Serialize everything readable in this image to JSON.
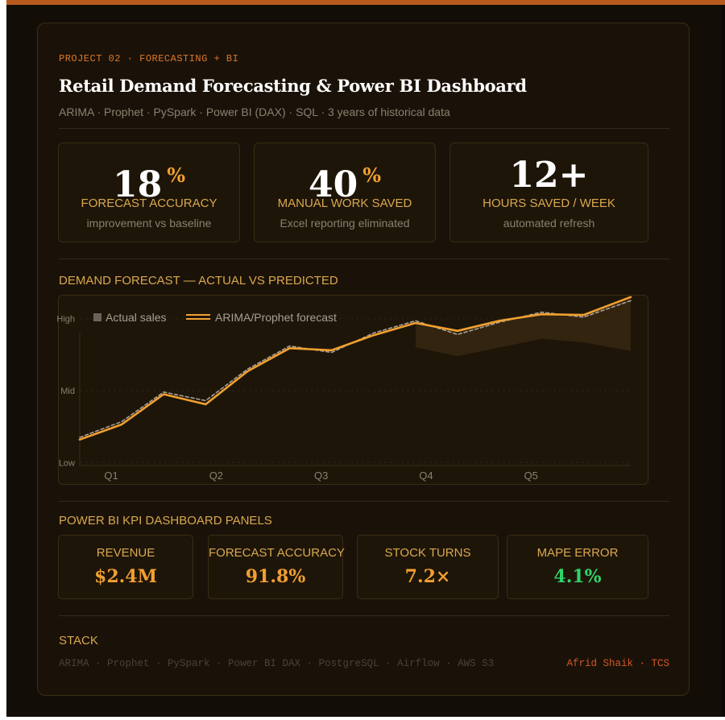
{
  "colors": {
    "accent": "#f0a030",
    "eyebrow": "#e0782a",
    "label": "#d9a84e",
    "good": "#2fd46a",
    "author": "#d2582a"
  },
  "project": {
    "eyebrow": "PROJECT 02 · FORECASTING + BI",
    "title": "Retail Demand Forecasting & Power BI Dashboard",
    "subtitle": "ARIMA · Prophet · PySpark · Power BI (DAX) · SQL · 3 years of historical data"
  },
  "stats": [
    {
      "value": "18",
      "unit": "%",
      "label": "FORECAST ACCURACY",
      "note": "improvement vs baseline"
    },
    {
      "value": "40",
      "unit": "%",
      "label": "MANUAL WORK SAVED",
      "note": "Excel reporting eliminated"
    },
    {
      "value": "12+",
      "unit": "",
      "label": "HOURS SAVED / WEEK",
      "note": "automated refresh"
    }
  ],
  "forecast_section": {
    "heading": "DEMAND FORECAST — ACTUAL VS PREDICTED"
  },
  "chart_data": {
    "type": "line",
    "title": "",
    "xlabel": "",
    "ylabel": "",
    "x_ticks": [
      "Q1",
      "Q2",
      "Q3",
      "Q4",
      "Q5"
    ],
    "y_ticks": [
      "Low",
      "Mid",
      "High"
    ],
    "grid": true,
    "legend_position": "top-left",
    "x_range": [
      0.7,
      5.95
    ],
    "y_range": [
      0.96,
      3.32
    ],
    "series": [
      {
        "name": "Actual sales",
        "style": "dashed",
        "color": "#a89f94",
        "x": [
          0.7,
          1.1,
          1.5,
          1.9,
          2.3,
          2.7,
          3.1,
          3.5,
          3.9,
          4.3,
          4.7,
          5.1,
          5.5,
          5.95
        ],
        "y": [
          1.35,
          1.57,
          1.98,
          1.86,
          2.3,
          2.62,
          2.53,
          2.8,
          2.97,
          2.78,
          2.95,
          3.09,
          3.02,
          3.25
        ]
      },
      {
        "name": "ARIMA/Prophet forecast",
        "style": "solid",
        "color": "#f0a030",
        "x": [
          0.7,
          1.1,
          1.5,
          1.9,
          2.3,
          2.7,
          3.1,
          3.5,
          3.9,
          4.3,
          4.7,
          5.1,
          5.5,
          5.95
        ],
        "y": [
          1.32,
          1.53,
          1.95,
          1.81,
          2.27,
          2.59,
          2.56,
          2.77,
          2.94,
          2.83,
          2.97,
          3.06,
          3.05,
          3.3
        ]
      }
    ],
    "confidence_band": {
      "x": [
        3.9,
        4.3,
        4.7,
        5.1,
        5.5,
        5.95
      ],
      "upper": [
        2.94,
        2.83,
        2.97,
        3.06,
        3.05,
        3.3
      ],
      "lower": [
        2.6,
        2.48,
        2.6,
        2.72,
        2.67,
        2.55
      ]
    }
  },
  "kpi_section": {
    "heading": "POWER BI KPI DASHBOARD PANELS"
  },
  "kpis": [
    {
      "label": "REVENUE",
      "value": "$2.4M",
      "status": "accent"
    },
    {
      "label": "FORECAST ACCURACY",
      "value": "91.8%",
      "status": "accent"
    },
    {
      "label": "STOCK TURNS",
      "value": "7.2×",
      "status": "accent"
    },
    {
      "label": "MAPE ERROR",
      "value": "4.1%",
      "status": "good"
    }
  ],
  "stack": {
    "heading": "STACK",
    "items": "ARIMA · Prophet · PySpark · Power BI DAX · PostgreSQL · Airflow · AWS S3",
    "author": "Afrid Shaik · TCS"
  }
}
